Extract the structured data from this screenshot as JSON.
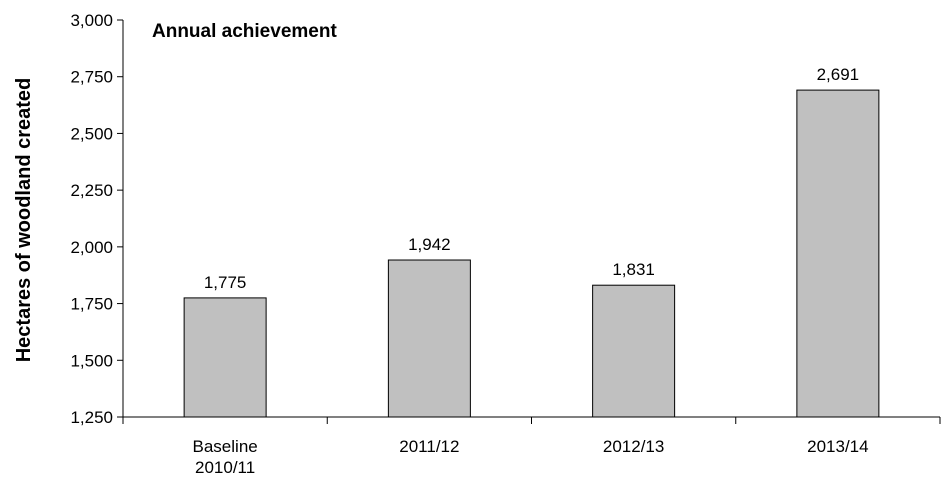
{
  "chart_data": {
    "type": "bar",
    "title": "Annual achievement",
    "xlabel": "",
    "ylabel": "Hectares of woodland created",
    "categories": [
      [
        "Baseline",
        "2010/11"
      ],
      [
        "2011/12"
      ],
      [
        "2012/13"
      ],
      [
        "2013/14"
      ]
    ],
    "values": [
      1775,
      1942,
      1831,
      2691
    ],
    "data_labels": [
      "1,775",
      "1,942",
      "1,831",
      "2,691"
    ],
    "ylim": [
      1250,
      3000
    ],
    "yticks": [
      1250,
      1500,
      1750,
      2000,
      2250,
      2500,
      2750,
      3000
    ],
    "ytick_labels": [
      "1,250",
      "1,500",
      "1,750",
      "2,000",
      "2,250",
      "2,500",
      "2,750",
      "3,000"
    ],
    "grid": false,
    "legend": "none",
    "colors": {
      "bar_fill": "#c0c0c0",
      "bar_stroke": "#000000"
    }
  }
}
